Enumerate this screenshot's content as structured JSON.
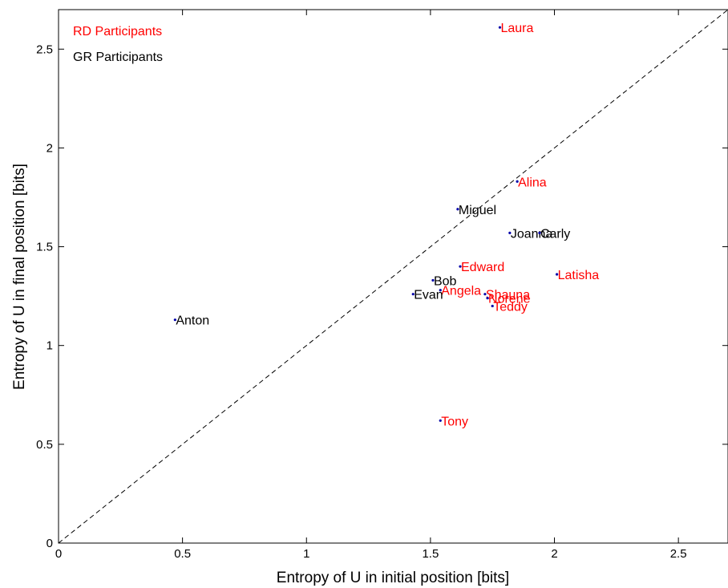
{
  "chart_data": {
    "type": "scatter",
    "xlabel": "Entropy of U in initial position [bits]",
    "ylabel": "Entropy of U in final position [bits]",
    "xlim": [
      0,
      2.7
    ],
    "ylim": [
      0,
      2.7
    ],
    "x_ticks": [
      0,
      0.5,
      1,
      1.5,
      2,
      2.5
    ],
    "y_ticks": [
      0,
      0.5,
      1,
      1.5,
      2,
      2.5
    ],
    "x_tick_labels": [
      "0",
      "0.5",
      "1",
      "1.5",
      "2",
      "2.5"
    ],
    "y_tick_labels": [
      "0",
      "0.5",
      "1",
      "1.5",
      "2",
      "2.5"
    ],
    "grid": false,
    "legend_position": "top-left",
    "reference_line": "y = x (dashed)",
    "marker_color": "#0000aa",
    "series": [
      {
        "name": "RD Participants",
        "color": "#ff0000",
        "points": [
          {
            "label": "Laura",
            "x": 1.78,
            "y": 2.61
          },
          {
            "label": "Alina",
            "x": 1.85,
            "y": 1.83
          },
          {
            "label": "Edward",
            "x": 1.62,
            "y": 1.4
          },
          {
            "label": "Latisha",
            "x": 2.01,
            "y": 1.36
          },
          {
            "label": "Angela",
            "x": 1.54,
            "y": 1.28
          },
          {
            "label": "Shauna",
            "x": 1.72,
            "y": 1.26
          },
          {
            "label": "Norene",
            "x": 1.73,
            "y": 1.24
          },
          {
            "label": "Teddy",
            "x": 1.75,
            "y": 1.2
          },
          {
            "label": "Tony",
            "x": 1.54,
            "y": 0.62
          }
        ]
      },
      {
        "name": "GR Participants",
        "color": "#000000",
        "points": [
          {
            "label": "Miguel",
            "x": 1.61,
            "y": 1.69
          },
          {
            "label": "Joanna",
            "x": 1.82,
            "y": 1.57
          },
          {
            "label": "Carly",
            "x": 1.94,
            "y": 1.57
          },
          {
            "label": "Bob",
            "x": 1.51,
            "y": 1.33
          },
          {
            "label": "Evan",
            "x": 1.43,
            "y": 1.26
          },
          {
            "label": "Anton",
            "x": 0.47,
            "y": 1.13
          }
        ]
      }
    ]
  }
}
